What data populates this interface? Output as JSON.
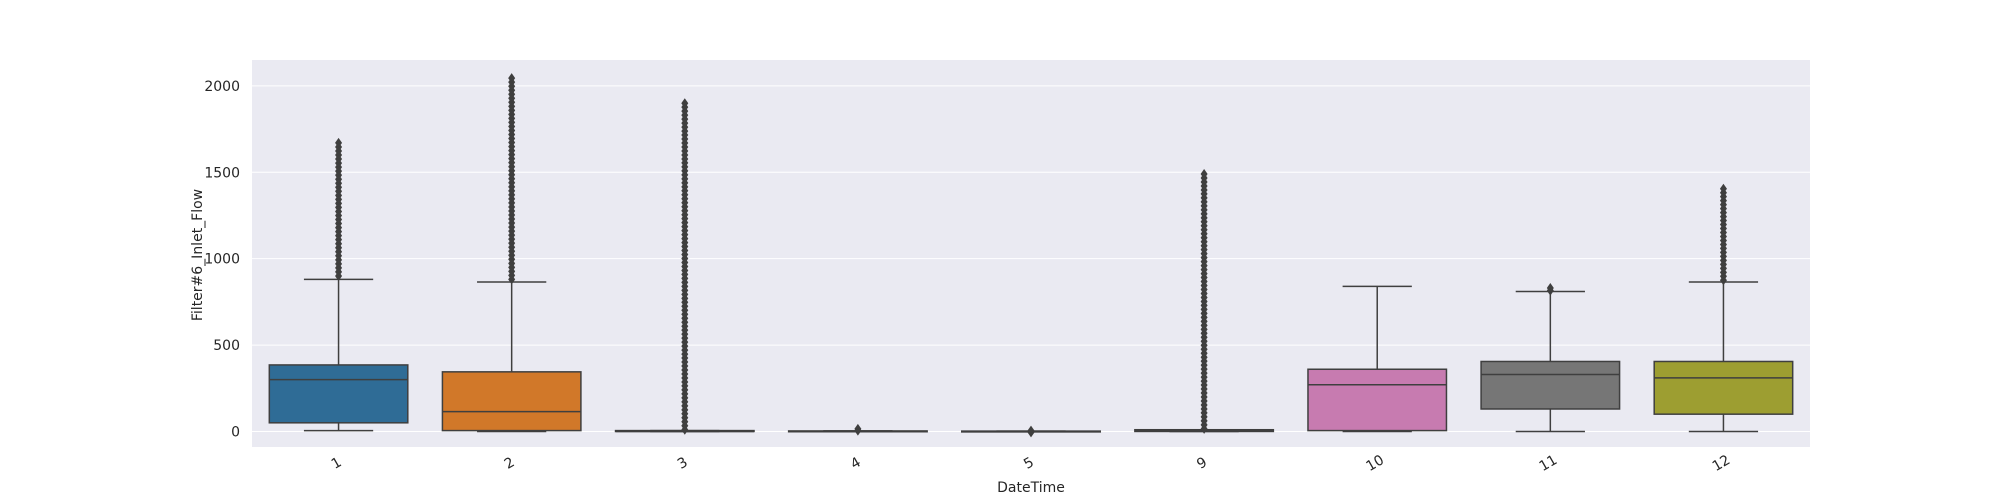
{
  "chart_data": {
    "type": "box",
    "xlabel": "DateTime",
    "ylabel": "Filter#6_Inlet_Flow",
    "ylim": [
      -90,
      2150
    ],
    "yticks": [
      0,
      500,
      1000,
      1500,
      2000
    ],
    "grid": true,
    "categories": [
      "1",
      "2",
      "3",
      "4",
      "5",
      "9",
      "10",
      "11",
      "12"
    ],
    "boxes": [
      {
        "category": "1",
        "color": "#3274a1",
        "whisker_low": 5,
        "q1": 50,
        "median": 300,
        "q3": 385,
        "whisker_high": 880,
        "outlier_range": [
          900,
          1670
        ]
      },
      {
        "category": "2",
        "color": "#e1812c",
        "whisker_low": 0,
        "q1": 5,
        "median": 115,
        "q3": 345,
        "whisker_high": 865,
        "outlier_range": [
          880,
          2045
        ]
      },
      {
        "category": "3",
        "color": "#3a923a",
        "whisker_low": 0,
        "q1": 0,
        "median": 0,
        "q3": 5,
        "whisker_high": 5,
        "outlier_range": [
          10,
          1900
        ]
      },
      {
        "category": "4",
        "color": "#c03d3e",
        "whisker_low": 0,
        "q1": 0,
        "median": 0,
        "q3": 3,
        "whisker_high": 3,
        "outlier_range": [
          5,
          15
        ]
      },
      {
        "category": "5",
        "color": "#9372b2",
        "whisker_low": 0,
        "q1": 0,
        "median": 0,
        "q3": 2,
        "whisker_high": 2,
        "outlier_range": [
          -5,
          5
        ]
      },
      {
        "category": "9",
        "color": "#845b53",
        "whisker_low": 0,
        "q1": 0,
        "median": 5,
        "q3": 10,
        "whisker_high": 10,
        "outlier_range": [
          15,
          1490
        ]
      },
      {
        "category": "10",
        "color": "#d684bd",
        "whisker_low": 0,
        "q1": 5,
        "median": 270,
        "q3": 360,
        "whisker_high": 840
      },
      {
        "category": "11",
        "color": "#7f7f7f",
        "whisker_low": 0,
        "q1": 130,
        "median": 330,
        "q3": 405,
        "whisker_high": 810,
        "outlier_range": [
          815,
          830
        ]
      },
      {
        "category": "12",
        "color": "#a9aa35",
        "whisker_low": 0,
        "q1": 100,
        "median": 310,
        "q3": 405,
        "whisker_high": 865,
        "outlier_range": [
          875,
          1405
        ]
      }
    ]
  }
}
